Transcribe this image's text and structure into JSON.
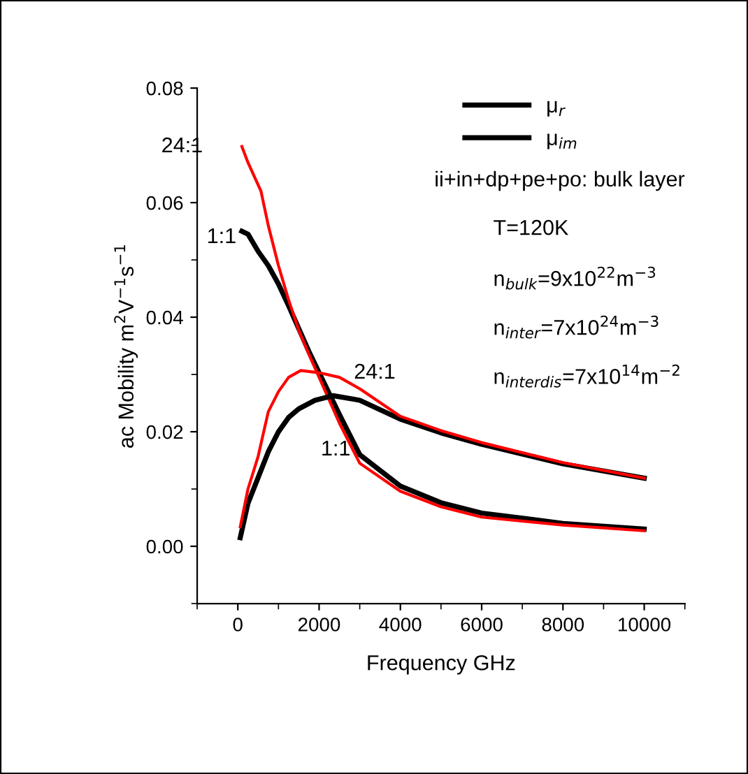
{
  "chart_data": {
    "type": "line",
    "xlabel": "Frequency GHz",
    "ylabel": "ac Mobility m$^{2}$V$^{−1}$s$^{−1}$",
    "xlim": [
      -1000,
      11000
    ],
    "xticks": [
      0,
      2000,
      4000,
      6000,
      8000,
      10000
    ],
    "ylim": [
      -0.01,
      0.08
    ],
    "yticks": [
      {
        "value": 0,
        "label": "0.00"
      },
      {
        "value": 0.02,
        "label": "0.02"
      },
      {
        "value": 0.04,
        "label": "0.04"
      },
      {
        "value": 0.06,
        "label": "0.06"
      },
      {
        "value": 0.08,
        "label": "0.08"
      }
    ],
    "grid": false,
    "legend": "top right",
    "marker": "none",
    "series": [
      {
        "name": "μ$_{r}$",
        "color": "#000000",
        "line_style": "solid",
        "x": [
          100,
          250,
          500,
          750,
          1000,
          1250,
          1500,
          1750,
          2000,
          2500,
          3000,
          4000,
          5000,
          6000,
          8000,
          10000
        ],
        "values": [
          0.055,
          0.0545,
          0.0515,
          0.049,
          0.0458,
          0.042,
          0.038,
          0.034,
          0.0303,
          0.023,
          0.016,
          0.0105,
          0.0076,
          0.0058,
          0.004,
          0.003
        ]
      },
      {
        "color": "#ff0000",
        "line_style": "solid",
        "x": [
          100,
          250,
          570,
          750,
          1000,
          1250,
          1500,
          1750,
          2000,
          2500,
          3000,
          4000,
          5000,
          6000,
          8000,
          10000
        ],
        "values": [
          0.0698,
          0.067,
          0.062,
          0.056,
          0.049,
          0.043,
          0.0377,
          0.0335,
          0.0295,
          0.0215,
          0.0145,
          0.0096,
          0.0069,
          0.0051,
          0.0037,
          0.0027
        ]
      },
      {
        "name": "μ$_{im}$",
        "color": "#000000",
        "line_style": "solid",
        "x": [
          60,
          250,
          500,
          750,
          1000,
          1250,
          1500,
          1900,
          2340,
          3000,
          4000,
          5000,
          6000,
          8000,
          10000
        ],
        "values": [
          0.0015,
          0.0075,
          0.012,
          0.0165,
          0.02,
          0.0225,
          0.024,
          0.0255,
          0.0263,
          0.0255,
          0.0222,
          0.0198,
          0.0178,
          0.0144,
          0.0119
        ]
      },
      {
        "color": "#ff0000",
        "line_style": "solid",
        "x": [
          60,
          250,
          500,
          750,
          1000,
          1250,
          1550,
          2000,
          2500,
          3000,
          4000,
          5000,
          6000,
          8000,
          10000
        ],
        "values": [
          0.0034,
          0.01,
          0.0157,
          0.0235,
          0.027,
          0.0295,
          0.0307,
          0.0303,
          0.0295,
          0.0275,
          0.0227,
          0.0202,
          0.0181,
          0.0146,
          0.0119
        ]
      }
    ],
    "annotations": [
      "24:1",
      "1:1",
      "24:1",
      "1:1",
      "ii+in+dp+pe+po: bulk layer",
      "T=120K",
      "n$_{bulk}$=9x10$^{22}$m$^{−3}$",
      "n$_{inter}$=7x10$^{24}$m$^{−3}$",
      "n$_{interdis}$=7x10$^{14}$m$^{−2}$"
    ]
  }
}
